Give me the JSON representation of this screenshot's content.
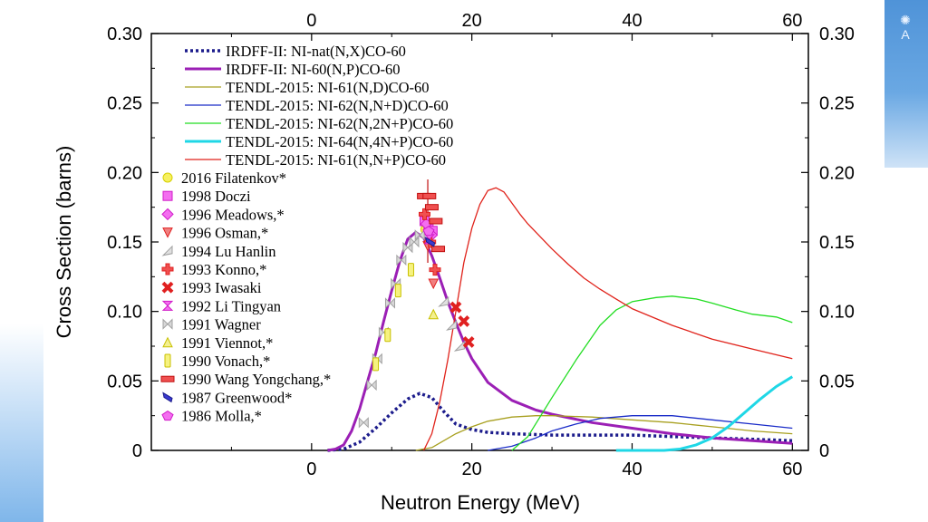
{
  "chart_data": {
    "type": "line",
    "xlabel": "Neutron Energy (MeV)",
    "ylabel": "Cross Section (barns)",
    "xlim": [
      -20,
      62
    ],
    "ylim": [
      0,
      0.3
    ],
    "x_ticks": [
      0,
      20,
      40,
      60
    ],
    "x_tick_labels": [
      "0",
      "20",
      "40",
      "60"
    ],
    "y_ticks": [
      0,
      0.05,
      0.1,
      0.15,
      0.2,
      0.25,
      0.3
    ],
    "y_tick_labels": [
      "0",
      "0.05",
      "0.10",
      "0.15",
      "0.20",
      "0.25",
      "0.30"
    ],
    "series": [
      {
        "name": "IRDFF-II: NI-nat(N,X)CO-60",
        "color": "#1c1c8c",
        "style": "dotted",
        "x": [
          2,
          4,
          6,
          8,
          10,
          12,
          13.5,
          15,
          16.5,
          18,
          20,
          22,
          25,
          30,
          35,
          40,
          45,
          50,
          55,
          60
        ],
        "y": [
          0,
          0.001,
          0.006,
          0.016,
          0.027,
          0.037,
          0.041,
          0.038,
          0.028,
          0.019,
          0.015,
          0.013,
          0.012,
          0.011,
          0.011,
          0.011,
          0.01,
          0.009,
          0.008,
          0.007
        ]
      },
      {
        "name": "IRDFF-II: NI-60(N,P)CO-60",
        "color": "#9b1fb5",
        "style": "thick",
        "x": [
          2,
          3,
          4,
          5,
          6,
          7,
          8,
          9,
          10,
          11,
          12,
          13,
          14,
          15,
          16,
          17,
          18,
          19,
          20,
          22,
          25,
          28,
          30,
          35,
          40,
          45,
          50,
          55,
          60
        ],
        "y": [
          0,
          0.001,
          0.004,
          0.014,
          0.03,
          0.05,
          0.07,
          0.093,
          0.115,
          0.136,
          0.152,
          0.157,
          0.153,
          0.14,
          0.124,
          0.107,
          0.092,
          0.078,
          0.066,
          0.049,
          0.036,
          0.029,
          0.026,
          0.02,
          0.016,
          0.012,
          0.009,
          0.007,
          0.005
        ]
      },
      {
        "name": "TENDL-2015: NI-61(N,D)CO-60",
        "color": "#a8a020",
        "style": "solid",
        "x": [
          13,
          15,
          18,
          20,
          22,
          25,
          28,
          30,
          35,
          40,
          45,
          50,
          55,
          60
        ],
        "y": [
          0,
          0.002,
          0.012,
          0.017,
          0.021,
          0.024,
          0.025,
          0.025,
          0.024,
          0.022,
          0.02,
          0.017,
          0.014,
          0.012
        ]
      },
      {
        "name": "TENDL-2015: NI-62(N,N+D)CO-60",
        "color": "#1a2cc8",
        "style": "solid",
        "x": [
          22,
          25,
          28,
          30,
          33,
          36,
          40,
          45,
          50,
          55,
          60
        ],
        "y": [
          0,
          0.003,
          0.009,
          0.014,
          0.019,
          0.023,
          0.025,
          0.025,
          0.022,
          0.019,
          0.016
        ]
      },
      {
        "name": "TENDL-2015: NI-62(N,2N+P)CO-60",
        "color": "#22dd22",
        "style": "solid",
        "x": [
          25,
          27,
          30,
          33,
          36,
          38,
          40,
          43,
          45,
          48,
          50,
          53,
          55,
          58,
          60
        ],
        "y": [
          0,
          0.01,
          0.038,
          0.065,
          0.09,
          0.101,
          0.107,
          0.11,
          0.111,
          0.109,
          0.106,
          0.101,
          0.098,
          0.096,
          0.092
        ]
      },
      {
        "name": "TENDL-2015: NI-64(N,4N+P)CO-60",
        "color": "#1fd7e6",
        "style": "thick",
        "x": [
          38,
          44,
          46,
          48,
          50,
          52,
          54,
          56,
          58,
          60
        ],
        "y": [
          0,
          0,
          0.001,
          0.004,
          0.009,
          0.017,
          0.027,
          0.037,
          0.046,
          0.053
        ]
      },
      {
        "name": "TENDL-2015: NI-61(N,N+P)CO-60",
        "color": "#e0221a",
        "style": "solid",
        "x": [
          14,
          15,
          16,
          17,
          18,
          19,
          20,
          21,
          22,
          23,
          24,
          25,
          26,
          27,
          28,
          30,
          32,
          34,
          36,
          38,
          40,
          45,
          50,
          55,
          60
        ],
        "y": [
          0,
          0.012,
          0.035,
          0.065,
          0.1,
          0.135,
          0.16,
          0.177,
          0.187,
          0.189,
          0.186,
          0.178,
          0.17,
          0.163,
          0.157,
          0.145,
          0.134,
          0.124,
          0.116,
          0.109,
          0.102,
          0.09,
          0.08,
          0.073,
          0.066
        ]
      }
    ],
    "experiments": [
      {
        "label": "2016 Filatenkov*",
        "marker": "circle",
        "color": "#d6d000",
        "fill": "#f6f060",
        "points": [
          [
            14.2,
            0.159
          ],
          [
            14.6,
            0.16
          ]
        ]
      },
      {
        "label": "1998 Doczi",
        "marker": "square",
        "color": "#d01cc8",
        "fill": "#f46ef0",
        "points": [
          [
            14.1,
            0.165
          ],
          [
            14.6,
            0.162
          ],
          [
            15.1,
            0.158
          ]
        ]
      },
      {
        "label": "1996 Meadows,*",
        "marker": "diamond",
        "color": "#d01cc8",
        "fill": "#f46ef0",
        "points": [
          [
            14.3,
            0.163
          ],
          [
            15.0,
            0.155
          ]
        ]
      },
      {
        "label": "1996 Osman,*",
        "marker": "tri-right",
        "color": "#e02020",
        "fill": "#f08080",
        "points": [
          [
            14.5,
            0.147
          ],
          [
            15.2,
            0.12
          ]
        ]
      },
      {
        "label": "1994 Lu Hanlin",
        "marker": "tri-diag",
        "color": "#a0a0a0",
        "fill": "#e0e0e0",
        "points": [
          [
            16.5,
            0.107
          ],
          [
            17.5,
            0.09
          ],
          [
            18.5,
            0.075
          ]
        ]
      },
      {
        "label": "1993 Konno,*",
        "marker": "cross",
        "color": "#e02020",
        "fill": "#f05050",
        "points": [
          [
            14.1,
            0.17
          ],
          [
            14.8,
            0.15
          ],
          [
            15.4,
            0.13
          ]
        ]
      },
      {
        "label": "1993 Iwasaki",
        "marker": "x-box",
        "color": "#e02020",
        "fill": "#f06a6a",
        "points": [
          [
            18.0,
            0.103
          ],
          [
            19.0,
            0.093
          ],
          [
            19.6,
            0.078
          ]
        ]
      },
      {
        "label": "1992 Li Tingyan",
        "marker": "hourglass",
        "color": "#d01cc8",
        "fill": "#f46ef0",
        "points": [
          [
            14.7,
            0.152
          ]
        ]
      },
      {
        "label": "1991 Wagner",
        "marker": "bowtie",
        "color": "#a0a0a0",
        "fill": "#d8d8d8",
        "points": [
          [
            6.5,
            0.02
          ],
          [
            7.5,
            0.047
          ],
          [
            8.2,
            0.066
          ],
          [
            9.0,
            0.085
          ],
          [
            9.8,
            0.106
          ],
          [
            10.5,
            0.12
          ],
          [
            11.2,
            0.137
          ],
          [
            12.0,
            0.146
          ],
          [
            12.8,
            0.15
          ],
          [
            13.5,
            0.155
          ]
        ]
      },
      {
        "label": "1991 Viennot,*",
        "marker": "tri-up",
        "color": "#c8c000",
        "fill": "#f4f090",
        "points": [
          [
            15.2,
            0.098
          ]
        ]
      },
      {
        "label": "1990 Vonach,*",
        "marker": "bar",
        "color": "#c8c000",
        "fill": "#f6f280",
        "points": [
          [
            8.0,
            0.062
          ],
          [
            9.5,
            0.083
          ],
          [
            10.8,
            0.115
          ],
          [
            12.4,
            0.13
          ]
        ]
      },
      {
        "label": "1990 Wang Yongchang,*",
        "marker": "hbar",
        "color": "#c01010",
        "fill": "#f05050",
        "points": [
          [
            14.0,
            0.183
          ],
          [
            14.7,
            0.183
          ],
          [
            15.0,
            0.175
          ],
          [
            15.5,
            0.165
          ],
          [
            15.8,
            0.145
          ]
        ]
      },
      {
        "label": "1987 Greenwood*",
        "marker": "leaf",
        "color": "#1c1c8c",
        "fill": "#3a3ad0",
        "points": [
          [
            14.8,
            0.15
          ]
        ]
      },
      {
        "label": "1986 Molla,*",
        "marker": "pentagon",
        "color": "#d01cc8",
        "fill": "#f46ef0",
        "points": [
          [
            14.6,
            0.158
          ]
        ]
      }
    ]
  },
  "branding": {
    "logo_letter": "A"
  }
}
